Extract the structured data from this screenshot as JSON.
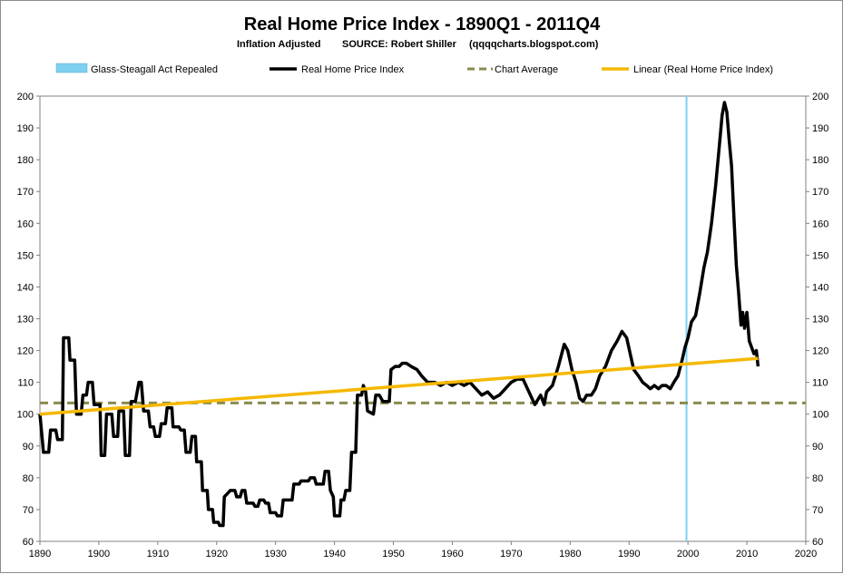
{
  "chart_data": {
    "type": "line",
    "title": "Real Home Price Index - 1890Q1 - 2011Q4",
    "subtitle": {
      "left": "Inflation Adjusted",
      "middle": "SOURCE: Robert Shiller",
      "right": "(qqqqcharts.blogspot.com)"
    },
    "xlim": [
      1890,
      2020
    ],
    "ylim": [
      60,
      200
    ],
    "x_ticks": [
      1890,
      1900,
      1910,
      1920,
      1930,
      1940,
      1950,
      1960,
      1970,
      1980,
      1990,
      2000,
      2010,
      2020
    ],
    "y_ticks": [
      60,
      70,
      80,
      90,
      100,
      110,
      120,
      130,
      140,
      150,
      160,
      170,
      180,
      190,
      200
    ],
    "legend": [
      {
        "label": "Glass-Steagall  Act Repealed",
        "color": "#7fd0f0",
        "kind": "patch"
      },
      {
        "label": "Real Home  Price Index",
        "color": "#000000",
        "kind": "line"
      },
      {
        "label": "Chart Average",
        "color": "#8b8a4e",
        "kind": "dash"
      },
      {
        "label": "Linear (Real Home Price Index)",
        "color": "#f5b800",
        "kind": "line"
      }
    ],
    "series": [
      {
        "name": "Real Home  Price Index",
        "color": "#000000",
        "points": [
          [
            1890,
            100
          ],
          [
            1890.6,
            88
          ],
          [
            1891.5,
            88
          ],
          [
            1891.8,
            95
          ],
          [
            1892.7,
            95
          ],
          [
            1893,
            92
          ],
          [
            1893.8,
            92
          ],
          [
            1894,
            124
          ],
          [
            1894.9,
            124
          ],
          [
            1895.1,
            117
          ],
          [
            1895.9,
            117
          ],
          [
            1896.2,
            100
          ],
          [
            1897,
            100
          ],
          [
            1897.3,
            106
          ],
          [
            1897.9,
            106
          ],
          [
            1898.2,
            110
          ],
          [
            1898.9,
            110
          ],
          [
            1899.2,
            103
          ],
          [
            1900.2,
            103
          ],
          [
            1900.4,
            87
          ],
          [
            1901,
            87
          ],
          [
            1901.3,
            100
          ],
          [
            1902.2,
            100
          ],
          [
            1902.5,
            93
          ],
          [
            1903.2,
            93
          ],
          [
            1903.4,
            101
          ],
          [
            1904.2,
            101
          ],
          [
            1904.5,
            87
          ],
          [
            1905.2,
            87
          ],
          [
            1905.5,
            104
          ],
          [
            1906.2,
            104
          ],
          [
            1906.8,
            110
          ],
          [
            1907.2,
            110
          ],
          [
            1907.6,
            101
          ],
          [
            1908.4,
            101
          ],
          [
            1908.7,
            96
          ],
          [
            1909.3,
            96
          ],
          [
            1909.6,
            93
          ],
          [
            1910.3,
            93
          ],
          [
            1910.6,
            97
          ],
          [
            1911.3,
            97
          ],
          [
            1911.6,
            102
          ],
          [
            1912.4,
            102
          ],
          [
            1912.6,
            96
          ],
          [
            1913.6,
            96
          ],
          [
            1913.9,
            95
          ],
          [
            1914.5,
            95
          ],
          [
            1914.8,
            88
          ],
          [
            1915.5,
            88
          ],
          [
            1915.8,
            93
          ],
          [
            1916.4,
            93
          ],
          [
            1916.6,
            85
          ],
          [
            1917.4,
            85
          ],
          [
            1917.6,
            76
          ],
          [
            1918.4,
            76
          ],
          [
            1918.6,
            70
          ],
          [
            1919.3,
            70
          ],
          [
            1919.5,
            66
          ],
          [
            1920.3,
            66
          ],
          [
            1920.5,
            65
          ],
          [
            1921.1,
            65
          ],
          [
            1921.3,
            74
          ],
          [
            1921.8,
            75
          ],
          [
            1922.3,
            76
          ],
          [
            1923.1,
            76
          ],
          [
            1923.4,
            74
          ],
          [
            1924,
            74
          ],
          [
            1924.3,
            76
          ],
          [
            1924.8,
            76
          ],
          [
            1925.1,
            72
          ],
          [
            1926.2,
            72
          ],
          [
            1926.5,
            71
          ],
          [
            1927,
            71
          ],
          [
            1927.3,
            73
          ],
          [
            1928,
            73
          ],
          [
            1928.3,
            72
          ],
          [
            1928.8,
            72
          ],
          [
            1929.1,
            69
          ],
          [
            1930,
            69
          ],
          [
            1930.3,
            68
          ],
          [
            1931,
            68
          ],
          [
            1931.3,
            73
          ],
          [
            1932.8,
            73
          ],
          [
            1933.1,
            78
          ],
          [
            1934,
            78
          ],
          [
            1934.3,
            79
          ],
          [
            1935.6,
            79
          ],
          [
            1935.9,
            80
          ],
          [
            1936.6,
            80
          ],
          [
            1936.9,
            78
          ],
          [
            1938.1,
            78
          ],
          [
            1938.4,
            82
          ],
          [
            1939,
            82
          ],
          [
            1939.3,
            76
          ],
          [
            1939.8,
            74
          ],
          [
            1940,
            68
          ],
          [
            1940.9,
            68
          ],
          [
            1941.1,
            73
          ],
          [
            1941.6,
            73
          ],
          [
            1941.9,
            76
          ],
          [
            1942.6,
            76
          ],
          [
            1942.9,
            88
          ],
          [
            1943.6,
            88
          ],
          [
            1943.9,
            106
          ],
          [
            1944.6,
            106
          ],
          [
            1944.9,
            109
          ],
          [
            1945.3,
            107
          ],
          [
            1945.6,
            101
          ],
          [
            1946.6,
            100
          ],
          [
            1947,
            106
          ],
          [
            1947.6,
            106
          ],
          [
            1948.2,
            104
          ],
          [
            1949.3,
            104
          ],
          [
            1949.6,
            114
          ],
          [
            1950.3,
            115
          ],
          [
            1951,
            115
          ],
          [
            1951.5,
            116
          ],
          [
            1952.2,
            116
          ],
          [
            1953,
            115
          ],
          [
            1954,
            114
          ],
          [
            1954.8,
            112
          ],
          [
            1955.8,
            110
          ],
          [
            1957,
            110
          ],
          [
            1958,
            109
          ],
          [
            1959,
            110
          ],
          [
            1960,
            109
          ],
          [
            1961,
            110
          ],
          [
            1962,
            109
          ],
          [
            1963,
            110
          ],
          [
            1964,
            108
          ],
          [
            1965,
            106
          ],
          [
            1966,
            107
          ],
          [
            1967,
            105
          ],
          [
            1968,
            106
          ],
          [
            1969,
            108
          ],
          [
            1970,
            110
          ],
          [
            1971,
            111
          ],
          [
            1972,
            111
          ],
          [
            1973,
            107
          ],
          [
            1974,
            103
          ],
          [
            1975,
            106
          ],
          [
            1975.6,
            103
          ],
          [
            1976,
            107
          ],
          [
            1977,
            109
          ],
          [
            1978,
            115
          ],
          [
            1979,
            122
          ],
          [
            1979.6,
            120
          ],
          [
            1980.3,
            114
          ],
          [
            1981,
            110
          ],
          [
            1981.6,
            105
          ],
          [
            1982.2,
            104
          ],
          [
            1982.8,
            106
          ],
          [
            1983.6,
            106
          ],
          [
            1984.3,
            108
          ],
          [
            1985,
            112
          ],
          [
            1986,
            115
          ],
          [
            1987,
            120
          ],
          [
            1988,
            123
          ],
          [
            1988.8,
            126
          ],
          [
            1989.6,
            124
          ],
          [
            1990.2,
            119
          ],
          [
            1990.8,
            114
          ],
          [
            1991.6,
            112
          ],
          [
            1992.3,
            110
          ],
          [
            1993,
            109
          ],
          [
            1993.6,
            108
          ],
          [
            1994.3,
            109
          ],
          [
            1995,
            108
          ],
          [
            1995.6,
            109
          ],
          [
            1996.3,
            109
          ],
          [
            1997,
            108
          ],
          [
            1997.6,
            110
          ],
          [
            1998.3,
            112
          ],
          [
            1999,
            117
          ],
          [
            1999.5,
            121
          ],
          [
            2000,
            124
          ],
          [
            2000.6,
            129
          ],
          [
            2001.3,
            131
          ],
          [
            2002,
            138
          ],
          [
            2002.7,
            146
          ],
          [
            2003.3,
            151
          ],
          [
            2004,
            160
          ],
          [
            2004.7,
            172
          ],
          [
            2005.3,
            184
          ],
          [
            2005.8,
            194
          ],
          [
            2006.2,
            198
          ],
          [
            2006.6,
            195
          ],
          [
            2007,
            186
          ],
          [
            2007.4,
            178
          ],
          [
            2007.8,
            162
          ],
          [
            2008.2,
            147
          ],
          [
            2008.6,
            138
          ],
          [
            2009,
            128
          ],
          [
            2009.3,
            132
          ],
          [
            2009.6,
            127
          ],
          [
            2010,
            132
          ],
          [
            2010.4,
            123
          ],
          [
            2010.8,
            121
          ],
          [
            2011.2,
            119
          ],
          [
            2011.6,
            120
          ],
          [
            2011.9,
            115
          ]
        ]
      },
      {
        "name": "Chart Average",
        "color": "#8b8a4e",
        "points": [
          [
            1890,
            103.5
          ],
          [
            2020,
            103.5
          ]
        ]
      },
      {
        "name": "Linear (Real Home Price Index)",
        "color": "#f5b800",
        "points": [
          [
            1890,
            100
          ],
          [
            2011.9,
            117.5
          ]
        ]
      }
    ],
    "annotations": [
      {
        "label": "Glass-Steagall  Act Repealed",
        "x": 1999.75,
        "color": "#7fd0f0"
      }
    ]
  }
}
